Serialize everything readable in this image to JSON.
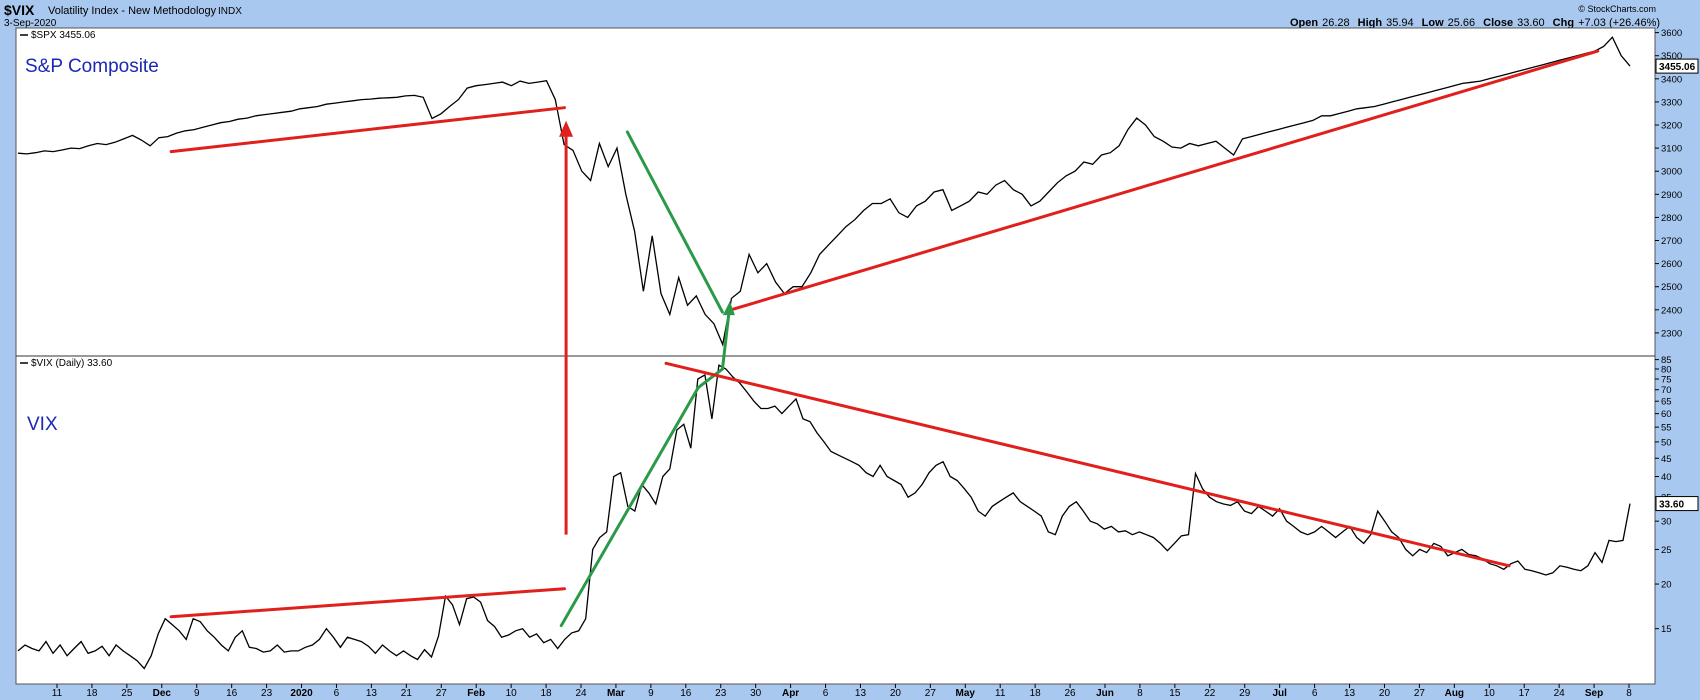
{
  "header": {
    "symbol": "$VIX",
    "description": "Volatility Index - New Methodology",
    "exchange": "INDX",
    "date": "3-Sep-2020",
    "watermark": "© StockCharts.com",
    "open_label": "Open",
    "open_value": "26.28",
    "high_label": "High",
    "high_value": "35.94",
    "low_label": "Low",
    "low_value": "25.66",
    "close_label": "Close",
    "close_value": "33.60",
    "chg_label": "Chg",
    "chg_value": "+7.03 (+26.46%)"
  },
  "colors": {
    "background": "#a9c8ef",
    "panel": "#ffffff",
    "price_line": "#000000",
    "trend_red": "#e0201c",
    "trend_green": "#2b9a48",
    "annotation_text": "#1a28b4"
  },
  "chart_data": [
    {
      "type": "line",
      "panel": "top",
      "legend": "$SPX 3455.06",
      "annotation": "S&P Composite",
      "last_value_label": "3455.06",
      "y_ticks": [
        2300,
        2400,
        2500,
        2600,
        2700,
        2800,
        2900,
        3000,
        3100,
        3200,
        3300,
        3400,
        3500,
        3600
      ],
      "ylim": [
        2200,
        3620
      ],
      "y_scale": "linear",
      "series": [
        {
          "values": [
            3078,
            3075,
            3080,
            3088,
            3085,
            3092,
            3100,
            3098,
            3110,
            3120,
            3115,
            3125,
            3140,
            3155,
            3135,
            3110,
            3145,
            3150,
            3165,
            3175,
            3180,
            3190,
            3200,
            3210,
            3215,
            3225,
            3230,
            3240,
            3245,
            3250,
            3255,
            3260,
            3270,
            3275,
            3280,
            3290,
            3295,
            3300,
            3305,
            3310,
            3312,
            3316,
            3318,
            3320,
            3326,
            3328,
            3320,
            3228,
            3248,
            3280,
            3310,
            3360,
            3370,
            3375,
            3380,
            3386,
            3370,
            3390,
            3380,
            3386,
            3392,
            3310,
            3115,
            3090,
            3000,
            2960,
            3120,
            3020,
            3100,
            2900,
            2740,
            2480,
            2720,
            2470,
            2380,
            2540,
            2420,
            2460,
            2380,
            2340,
            2250,
            2450,
            2480,
            2640,
            2560,
            2600,
            2520,
            2470,
            2500,
            2500,
            2560,
            2640,
            2680,
            2720,
            2760,
            2790,
            2830,
            2860,
            2860,
            2880,
            2820,
            2800,
            2850,
            2870,
            2910,
            2920,
            2830,
            2850,
            2870,
            2910,
            2900,
            2940,
            2960,
            2920,
            2900,
            2850,
            2870,
            2910,
            2950,
            2980,
            3000,
            3040,
            3030,
            3070,
            3080,
            3110,
            3180,
            3230,
            3200,
            3150,
            3130,
            3105,
            3100,
            3120,
            3110,
            3120,
            3130,
            3100,
            3070,
            3140,
            3150,
            3160,
            3170,
            3180,
            3190,
            3200,
            3210,
            3220,
            3240,
            3240,
            3250,
            3260,
            3270,
            3275,
            3280,
            3290,
            3300,
            3310,
            3320,
            3330,
            3340,
            3350,
            3360,
            3370,
            3380,
            3385,
            3390,
            3400,
            3410,
            3420,
            3430,
            3440,
            3450,
            3460,
            3470,
            3480,
            3490,
            3500,
            3510,
            3520,
            3540,
            3580,
            3500,
            3455
          ]
        }
      ],
      "trendlines": [
        {
          "color": "red",
          "x": [
            0.095,
            0.339
          ],
          "y": [
            3085,
            3275
          ]
        },
        {
          "color": "green",
          "x": [
            0.378,
            0.437
          ],
          "y": [
            3170,
            2390
          ]
        },
        {
          "color": "red",
          "x": [
            0.44,
            0.98
          ],
          "y": [
            2395,
            3520
          ]
        }
      ],
      "arrows": [
        {
          "color": "red",
          "x": [
            0.34,
            0.34
          ],
          "panel_to": "top",
          "y_end": 3210
        }
      ]
    },
    {
      "type": "line",
      "panel": "bottom",
      "legend": "$VIX (Daily) 33.60",
      "annotation": "VIX",
      "last_value_label": "33.60",
      "y_ticks": [
        15,
        20,
        25,
        30,
        35,
        40,
        45,
        50,
        55,
        60,
        65,
        70,
        75,
        80,
        85
      ],
      "ylim": [
        10.5,
        87
      ],
      "y_scale": "log",
      "series": [
        {
          "values": [
            13,
            13.5,
            13.2,
            13,
            13.8,
            12.8,
            13.5,
            12.6,
            13.2,
            13.8,
            12.8,
            13,
            13.4,
            12.6,
            13.5,
            13,
            12.6,
            12.2,
            11.6,
            12.6,
            14.5,
            16,
            15.4,
            14.8,
            14,
            16,
            15.7,
            14.8,
            14.2,
            13.5,
            13,
            14.2,
            14.8,
            13.3,
            13.2,
            12.9,
            13,
            13.5,
            12.9,
            13,
            13,
            13.3,
            13.5,
            14,
            15,
            14.2,
            13.3,
            14.2,
            14,
            13.8,
            13.4,
            12.8,
            13.5,
            13,
            12.6,
            13,
            12.6,
            12.3,
            13.1,
            12.5,
            14.3,
            18.5,
            17.5,
            15.4,
            18.2,
            18.4,
            17.8,
            15.8,
            15.2,
            14.2,
            14.4,
            14.8,
            15,
            14.2,
            14.5,
            13.7,
            14,
            13.2,
            14,
            14.6,
            14.8,
            16,
            25,
            27,
            28,
            40,
            41,
            33,
            32,
            38,
            36,
            33.5,
            40,
            42,
            54,
            56,
            48,
            75,
            77,
            58,
            82,
            80,
            76,
            73,
            69,
            65,
            62,
            62,
            63,
            60,
            63,
            66,
            58,
            57,
            53,
            50,
            47,
            46,
            45,
            44,
            43,
            41,
            40,
            43,
            40,
            39,
            38,
            35,
            36,
            38,
            41,
            43,
            44,
            40,
            39,
            37,
            35,
            32,
            31,
            33,
            34,
            35,
            36,
            34,
            33,
            32,
            31,
            28,
            27.5,
            31,
            33,
            34,
            32,
            30,
            29.5,
            28.5,
            29,
            28,
            28.2,
            27.5,
            28,
            27.5,
            27,
            26,
            24.8,
            26,
            27.3,
            27.5,
            40.8,
            37,
            35,
            34,
            33.5,
            33.2,
            34,
            32,
            31.5,
            33,
            32,
            31,
            32.5,
            30,
            29,
            28,
            27.5,
            28,
            29,
            28,
            27,
            28,
            29,
            27,
            26,
            27.5,
            32,
            30,
            28,
            27,
            25,
            24,
            25,
            24.5,
            26,
            25.5,
            24,
            24.5,
            25,
            24.2,
            24,
            23.5,
            22.8,
            22.5,
            22,
            22.8,
            23.2,
            22,
            21.8,
            21.5,
            21.2,
            21.5,
            22.5,
            22.3,
            22,
            21.8,
            22.5,
            24.5,
            23,
            26.5,
            26.3,
            26.5,
            33.6
          ]
        }
      ],
      "trendlines": [
        {
          "color": "red",
          "x": [
            0.095,
            0.339
          ],
          "y": [
            16.2,
            19.4
          ]
        },
        {
          "color": "green",
          "x": [
            0.337,
            0.422
          ],
          "y": [
            15.3,
            71
          ]
        },
        {
          "color": "green",
          "x": [
            0.422,
            0.437
          ],
          "y": [
            71,
            80
          ]
        },
        {
          "color": "red",
          "x": [
            0.402,
            0.925
          ],
          "y": [
            83,
            22.5
          ]
        }
      ],
      "arrows": [
        {
          "color": "red",
          "x": [
            0.34,
            0.34
          ],
          "y_start": 27.5
        }
      ]
    }
  ],
  "x_axis": {
    "ticks": [
      "11",
      "18",
      "25",
      "Dec",
      "9",
      "16",
      "23",
      "2020",
      "6",
      "13",
      "21",
      "27",
      "Feb",
      "10",
      "18",
      "24",
      "Mar",
      "9",
      "16",
      "23",
      "30",
      "Apr",
      "6",
      "13",
      "20",
      "27",
      "May",
      "11",
      "18",
      "26",
      "Jun",
      "8",
      "15",
      "22",
      "29",
      "Jul",
      "6",
      "13",
      "20",
      "27",
      "Aug",
      "10",
      "17",
      "24",
      "Sep",
      "8"
    ],
    "bold_ticks": [
      "Dec",
      "2020",
      "Feb",
      "Mar",
      "Apr",
      "May",
      "Jun",
      "Jul",
      "Aug",
      "Sep"
    ]
  }
}
